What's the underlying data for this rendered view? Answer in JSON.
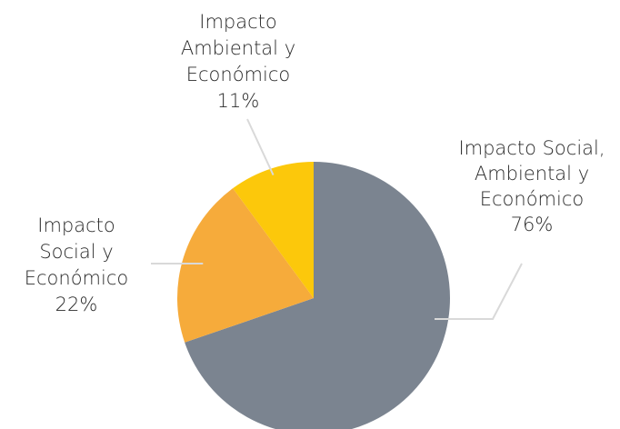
{
  "chart_data": {
    "type": "pie",
    "title": "",
    "slices": [
      {
        "label_lines": [
          "Impacto Social,",
          "Ambiental y",
          "Económico"
        ],
        "value": 76,
        "value_label": "76%",
        "color": "#7b8490"
      },
      {
        "label_lines": [
          "Impacto",
          "Social y",
          "Económico"
        ],
        "value": 22,
        "value_label": "22%",
        "color": "#f6ab3b"
      },
      {
        "label_lines": [
          "Impacto",
          "Ambiental y",
          "Económico"
        ],
        "value": 11,
        "value_label": "11%",
        "color": "#fcc80b"
      }
    ],
    "start_angle_deg": 0,
    "direction": "clockwise",
    "legend": "none",
    "leader_line_color": "#d9d9d9"
  }
}
